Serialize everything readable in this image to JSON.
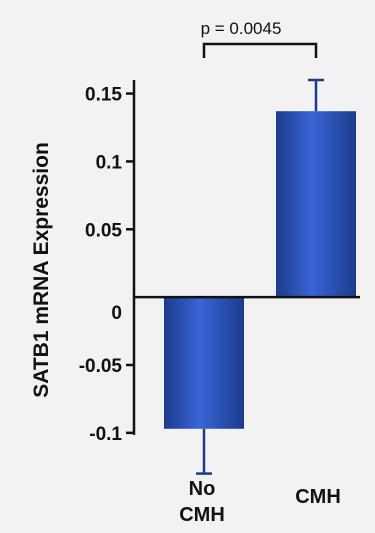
{
  "chart_data": {
    "type": "bar",
    "categories": [
      "No\nCMH",
      "CMH"
    ],
    "values": [
      -0.097,
      0.137
    ],
    "errors": [
      {
        "direction": "down",
        "value": 0.033
      },
      {
        "direction": "up",
        "value": 0.023
      }
    ],
    "ylabel": "SATB1 mRNA Expression",
    "xlabel": "",
    "ylim": [
      -0.12,
      0.16
    ],
    "yticks": [
      -0.1,
      -0.05,
      0,
      0.05,
      0.1,
      0.15
    ],
    "ytick_labels": [
      "-0.1",
      "-0.05",
      "0",
      "0.05",
      "0.1",
      "0.15"
    ],
    "annotation": "p = 0.0045",
    "bar_color": "#1a3c8c",
    "bar_highlight": "#3a64d6",
    "background": "#f2f2f2",
    "grid": false,
    "legend": "none"
  }
}
